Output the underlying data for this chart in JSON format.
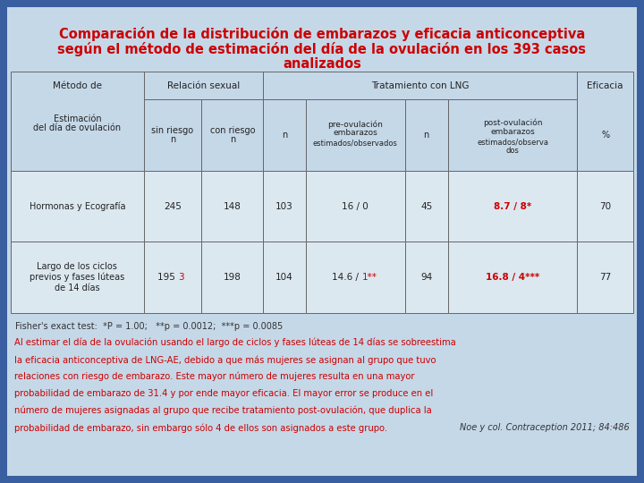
{
  "title_line1": "Comparación de la distribución de embarazos y eficacia anticonceptiva",
  "title_line2": "según el método de estimación del día de la ovulación en los 393 casos",
  "title_line3": "analizados",
  "title_color": "#cc0000",
  "bg_outer": "#3a5fa0",
  "bg_inner": "#c5d8e8",
  "table_bg_header": "#c5d8e8",
  "table_bg_data": "#dce8f0",
  "table_border": "#666666",
  "text_color_normal": "#333333",
  "text_color_red": "#cc0000",
  "fisher_text": "Fisher's exact test:  *P = 1.00;   **p = 0.0012;  ***p = 0.0085",
  "body_text_lines": [
    "Al estimar el día de la ovulación usando el largo de ciclos y fases lúteas de 14 días se sobreestima",
    "la eficacia anticonceptiva de LNG-AE, debido a que más mujeres se asignan al grupo que tuvo",
    "relaciones con riesgo de embarazo. Este mayor número de mujeres resulta en una mayor",
    "probabilidad de embarazo de 31.4 y por ende mayor eficacia. El mayor error se produce en el",
    "número de mujeres asignadas al grupo que recibe tratamiento post-ovulación, que duplica la",
    "probabilidad de embarazo, sin embargo sólo 4 de ellos son asignados a este grupo."
  ],
  "citation": "Noe y col. Contraception 2011; 84:486",
  "rows": [
    {
      "method": "Hormonas y Ecografía",
      "sin_riesgo": "245",
      "con_riesgo": "148",
      "n_pre": "103",
      "pre_emb": "16 / 0",
      "pre_emb_red": false,
      "n_post": "45",
      "post_emb": "8.7 / 8*",
      "eficacia": "70"
    },
    {
      "method": "Largo de los ciclos\nprevios y fases lúteas\nde 14 días",
      "sin_riesgo": "195 ",
      "sin_riesgo_red_suffix": "3",
      "con_riesgo": "198",
      "n_pre": "104",
      "pre_emb": "14.6 / 1**",
      "pre_emb_red": true,
      "n_post": "94",
      "post_emb": "16.8 / 4***",
      "eficacia": "77"
    }
  ]
}
